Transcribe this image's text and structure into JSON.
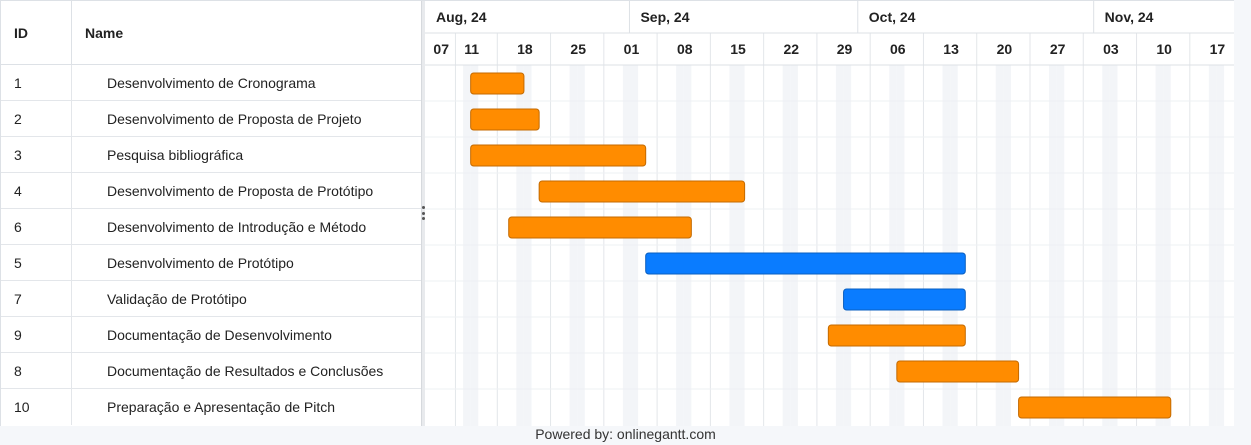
{
  "table": {
    "id_header": "ID",
    "name_header": "Name"
  },
  "months": [
    {
      "label": "Aug, 24",
      "start": "2024-08-05"
    },
    {
      "label": "Sep, 24",
      "start": "2024-09-01"
    },
    {
      "label": "Oct, 24",
      "start": "2024-10-01"
    },
    {
      "label": "Nov, 24",
      "start": "2024-11-01"
    }
  ],
  "weeks": [
    {
      "label": "07",
      "date": "2024-08-07"
    },
    {
      "label": "11",
      "date": "2024-08-11"
    },
    {
      "label": "18",
      "date": "2024-08-18"
    },
    {
      "label": "25",
      "date": "2024-08-25"
    },
    {
      "label": "01",
      "date": "2024-09-01"
    },
    {
      "label": "08",
      "date": "2024-09-08"
    },
    {
      "label": "15",
      "date": "2024-09-15"
    },
    {
      "label": "22",
      "date": "2024-09-22"
    },
    {
      "label": "29",
      "date": "2024-09-29"
    },
    {
      "label": "06",
      "date": "2024-10-06"
    },
    {
      "label": "13",
      "date": "2024-10-13"
    },
    {
      "label": "20",
      "date": "2024-10-20"
    },
    {
      "label": "27",
      "date": "2024-10-27"
    },
    {
      "label": "03",
      "date": "2024-11-03"
    },
    {
      "label": "10",
      "date": "2024-11-10"
    },
    {
      "label": "17",
      "date": "2024-11-17"
    }
  ],
  "colors": {
    "orange": "#ff8c00",
    "blue": "#0a7cff",
    "orange_border": "#c46a00",
    "blue_border": "#0a5fc0"
  },
  "chart_data": {
    "type": "gantt",
    "tasks": [
      {
        "id": "1",
        "name": "Desenvolvimento de Cronograma",
        "start": "2024-08-11",
        "end": "2024-08-18",
        "color": "orange"
      },
      {
        "id": "2",
        "name": "Desenvolvimento de Proposta de Projeto",
        "start": "2024-08-11",
        "end": "2024-08-20",
        "color": "orange"
      },
      {
        "id": "3",
        "name": "Pesquisa bibliográfica",
        "start": "2024-08-11",
        "end": "2024-09-03",
        "color": "orange"
      },
      {
        "id": "4",
        "name": "Desenvolvimento de Proposta de Protótipo",
        "start": "2024-08-20",
        "end": "2024-09-16",
        "color": "orange"
      },
      {
        "id": "6",
        "name": "Desenvolvimento de Introdução e Método",
        "start": "2024-08-16",
        "end": "2024-09-09",
        "color": "orange"
      },
      {
        "id": "5",
        "name": "Desenvolvimento de Protótipo",
        "start": "2024-09-03",
        "end": "2024-10-15",
        "color": "blue"
      },
      {
        "id": "7",
        "name": "Validação de Protótipo",
        "start": "2024-09-29",
        "end": "2024-10-15",
        "color": "blue"
      },
      {
        "id": "9",
        "name": "Documentação de Desenvolvimento",
        "start": "2024-09-27",
        "end": "2024-10-15",
        "color": "orange"
      },
      {
        "id": "8",
        "name": "Documentação de Resultados e Conclusões",
        "start": "2024-10-06",
        "end": "2024-10-22",
        "color": "orange"
      },
      {
        "id": "10",
        "name": "Preparação e Apresentação de Pitch",
        "start": "2024-10-22",
        "end": "2024-11-11",
        "color": "orange"
      }
    ]
  },
  "footer": {
    "text": "Powered by: onlinegantt.com"
  }
}
